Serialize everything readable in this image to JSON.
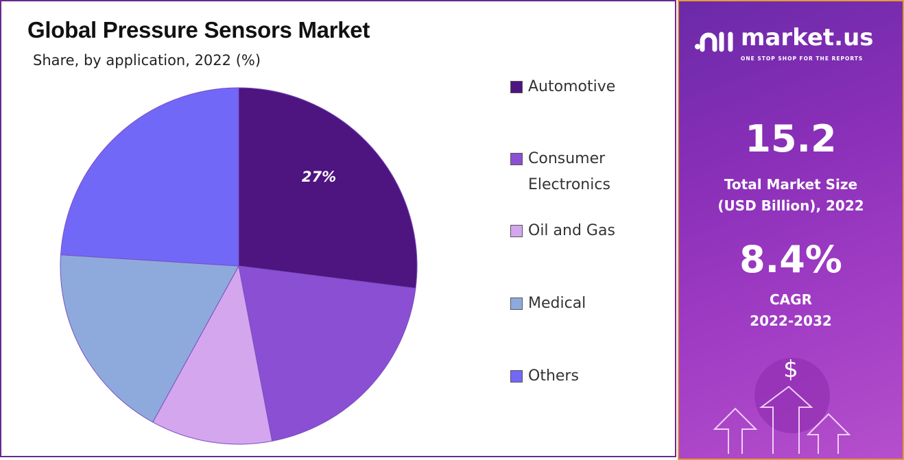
{
  "chart_data": {
    "type": "pie",
    "title": "Global Pressure Sensors Market",
    "subtitle": "Share, by application, 2022 (%)",
    "categories": [
      "Automotive",
      "Consumer Electronics",
      "Oil and Gas",
      "Medical",
      "Others"
    ],
    "values": [
      27,
      20,
      11,
      18,
      24
    ],
    "colors": [
      "#4e1480",
      "#8a4fd2",
      "#d4a6ee",
      "#8eaadc",
      "#7168f8"
    ],
    "data_labels": [
      "27%",
      null,
      null,
      null,
      null
    ],
    "legend_placement": "right"
  },
  "sidebar": {
    "logo_name": "market.us",
    "logo_tagline": "ONE STOP SHOP FOR THE REPORTS",
    "market_size_value": "15.2",
    "market_size_label_1": "Total Market Size",
    "market_size_label_2": "(USD Billion), 2022",
    "cagr_value": "8.4%",
    "cagr_label_1": "CAGR",
    "cagr_label_2": "2022-2032",
    "dollar_symbol": "$"
  }
}
